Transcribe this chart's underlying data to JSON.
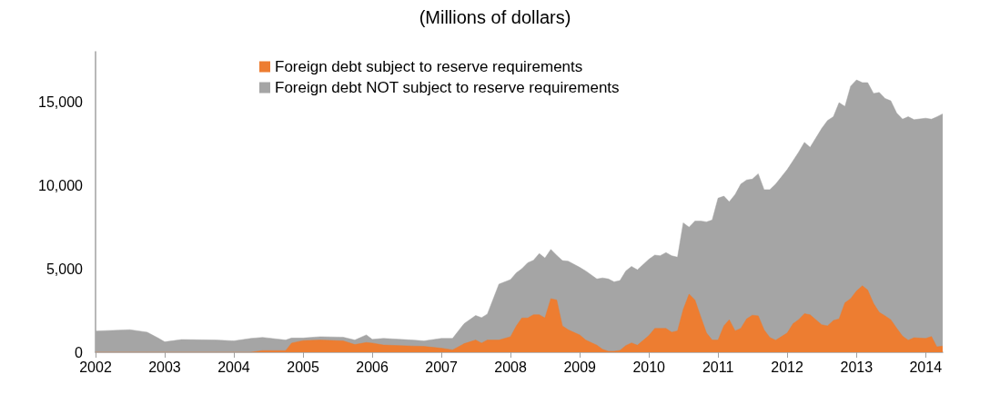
{
  "chart_data": {
    "type": "area",
    "title": "(Millions of dollars)",
    "stacked": true,
    "legend": "top",
    "grid": false,
    "marker": "none",
    "x": [
      "2002-01",
      "2002-07",
      "2002-10",
      "2002-12",
      "2003-01",
      "2003-04",
      "2003-10",
      "2004-01",
      "2004-04",
      "2004-06",
      "2004-10",
      "2004-11",
      "2005-01",
      "2005-04",
      "2005-08",
      "2005-10",
      "2005-12",
      "2006-01",
      "2006-03",
      "2006-08",
      "2006-10",
      "2007-01",
      "2007-03",
      "2007-05",
      "2007-07",
      "2007-08",
      "2007-09",
      "2007-11",
      "2008-01",
      "2008-02",
      "2008-03",
      "2008-04",
      "2008-05",
      "2008-06",
      "2008-07",
      "2008-08",
      "2008-09",
      "2008-10",
      "2008-11",
      "2009-01",
      "2009-02",
      "2009-04",
      "2009-05",
      "2009-06",
      "2009-07",
      "2009-08",
      "2009-09",
      "2009-10",
      "2009-11",
      "2010-01",
      "2010-02",
      "2010-03",
      "2010-04",
      "2010-05",
      "2010-06",
      "2010-07",
      "2010-08",
      "2010-09",
      "2010-10",
      "2010-11",
      "2010-12",
      "2011-01",
      "2011-02",
      "2011-03",
      "2011-04",
      "2011-05",
      "2011-06",
      "2011-07",
      "2011-08",
      "2011-09",
      "2011-10",
      "2011-11",
      "2012-01",
      "2012-02",
      "2012-03",
      "2012-04",
      "2012-05",
      "2012-07",
      "2012-08",
      "2012-09",
      "2012-10",
      "2012-11",
      "2012-12",
      "2013-01",
      "2013-02",
      "2013-03",
      "2013-04",
      "2013-05",
      "2013-06",
      "2013-07",
      "2013-08",
      "2013-09",
      "2013-10",
      "2013-11",
      "2014-01",
      "2014-02",
      "2014-03",
      "2014-04"
    ],
    "series": [
      {
        "name": "Foreign debt subject to reserve requirements",
        "color": "#ed7d31",
        "values": [
          0,
          0,
          0,
          0,
          0,
          0,
          0,
          0,
          0,
          100,
          100,
          550,
          700,
          730,
          680,
          460,
          580,
          550,
          430,
          370,
          350,
          240,
          140,
          510,
          730,
          550,
          730,
          730,
          930,
          1580,
          2050,
          2050,
          2250,
          2250,
          2050,
          3210,
          3130,
          1580,
          1340,
          1030,
          730,
          420,
          180,
          60,
          60,
          110,
          400,
          560,
          420,
          1000,
          1430,
          1430,
          1430,
          1200,
          1280,
          2560,
          3480,
          3130,
          2140,
          1150,
          730,
          730,
          1580,
          1950,
          1280,
          1430,
          2000,
          2220,
          2180,
          1340,
          890,
          720,
          1150,
          1710,
          1950,
          2310,
          2240,
          1650,
          1580,
          1900,
          2000,
          2960,
          3210,
          3670,
          3980,
          3730,
          2920,
          2390,
          2180,
          1950,
          1440,
          970,
          720,
          870,
          830,
          940,
          320,
          370
        ]
      },
      {
        "name": "Foreign debt NOT subject to reserve requirements",
        "color": "#a5a5a5",
        "values": [
          1270,
          1350,
          1200,
          830,
          620,
          760,
          730,
          680,
          830,
          790,
          630,
          300,
          150,
          200,
          220,
          270,
          460,
          220,
          400,
          360,
          330,
          590,
          690,
          1200,
          1470,
          1520,
          1560,
          3350,
          3420,
          3180,
          2950,
          3310,
          3260,
          3660,
          3590,
          2950,
          2670,
          3910,
          4110,
          4050,
          4140,
          3970,
          4270,
          4330,
          4160,
          4180,
          4470,
          4580,
          4520,
          4570,
          4390,
          4350,
          4540,
          4580,
          4410,
          5190,
          4010,
          4730,
          5720,
          6660,
          7190,
          8500,
          7770,
          7060,
          8170,
          8640,
          8320,
          8150,
          8510,
          8400,
          8850,
          9350,
          9790,
          9760,
          10030,
          10260,
          10030,
          11750,
          12300,
          12210,
          12950,
          11760,
          12730,
          12640,
          12170,
          12420,
          12580,
          13170,
          13020,
          13110,
          12890,
          12990,
          13390,
          13060,
          13190,
          13020,
          13780,
          13910
        ]
      }
    ],
    "xlim": [
      "2002-01",
      "2014-04"
    ],
    "xticks": [
      "2002",
      "2003",
      "2004",
      "2005",
      "2006",
      "2007",
      "2008",
      "2009",
      "2010",
      "2011",
      "2012",
      "2013",
      "2014"
    ],
    "ylim": [
      0,
      18000
    ],
    "yticks": [
      {
        "value": 0,
        "label": "0"
      },
      {
        "value": 5000,
        "label": "5,000"
      },
      {
        "value": 10000,
        "label": "10,000"
      },
      {
        "value": 15000,
        "label": "15,000"
      }
    ]
  }
}
